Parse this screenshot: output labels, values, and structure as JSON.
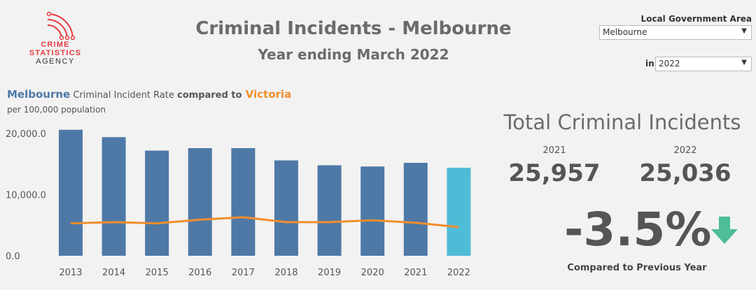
{
  "logo": {
    "line1": "CRIME",
    "line2": "STATISTICS",
    "line3": "AGENCY"
  },
  "header": {
    "title": "Criminal Incidents - Melbourne",
    "subtitle": "Year ending March 2022"
  },
  "filters": {
    "lga_label": "Local Government Area",
    "lga_value": "Melbourne",
    "in_label": "in",
    "year_value": "2022"
  },
  "chart_head": {
    "part1": "Melbourne",
    "part2": " Criminal Incident Rate ",
    "part3": "compared to",
    "part4": " Victoria",
    "sub": "per 100,000 population"
  },
  "chart_data": {
    "type": "bar",
    "categories": [
      "2013",
      "2014",
      "2015",
      "2016",
      "2017",
      "2018",
      "2019",
      "2020",
      "2021",
      "2022"
    ],
    "series": [
      {
        "name": "Melbourne",
        "type": "bar",
        "values": [
          20600,
          19400,
          17200,
          17600,
          17600,
          15600,
          14800,
          14600,
          15200,
          14400
        ]
      },
      {
        "name": "Victoria",
        "type": "line",
        "values": [
          5300,
          5500,
          5300,
          5900,
          6300,
          5500,
          5500,
          5800,
          5400,
          4700
        ]
      }
    ],
    "y_ticks": [
      "20,000.0",
      "10,000.0",
      "0.0"
    ],
    "ylim": [
      0,
      22000
    ],
    "colors": {
      "bar": "#4e79a7",
      "bar_highlight": "#4fbcd7",
      "line": "#f28e2b"
    }
  },
  "kpi": {
    "title": "Total Criminal Incidents",
    "year1": "2021",
    "value1": "25,957",
    "year2": "2022",
    "value2": "25,036",
    "change": "-3.5%",
    "compare_label": "Compared to Previous Year",
    "arrow_color": "#4dbd9a",
    "arrow_icon": "arrow-down-icon"
  }
}
